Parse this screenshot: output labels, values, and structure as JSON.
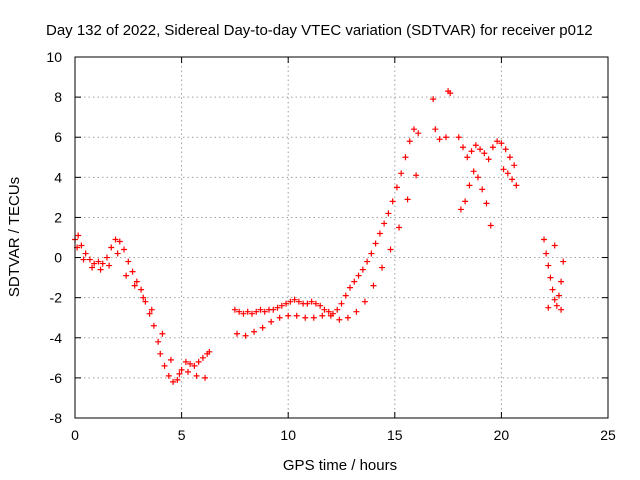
{
  "chart_data": {
    "type": "scatter",
    "title": "Day 132 of 2022, Sidereal Day-to-day VTEC variation (SDTVAR) for receiver p012",
    "xlabel": "GPS time / hours",
    "ylabel": "SDTVAR / TECUs",
    "xlim": [
      0,
      25
    ],
    "ylim": [
      -8,
      10
    ],
    "x_ticks": [
      0,
      5,
      10,
      15,
      20,
      25
    ],
    "y_ticks": [
      -8,
      -6,
      -4,
      -2,
      0,
      2,
      4,
      6,
      8,
      10
    ],
    "x_tick_labels": [
      "0",
      "5",
      "10",
      "15",
      "20",
      "25"
    ],
    "y_tick_labels": [
      "-8",
      "-6",
      "-4",
      "-2",
      "0",
      "2",
      "4",
      "6",
      "8",
      "10"
    ],
    "grid": true,
    "marker": "+",
    "color": "#ff0000",
    "series": [
      {
        "name": "SDTVAR",
        "x": [
          0.0,
          0.15,
          0.3,
          0.5,
          0.7,
          0.9,
          1.1,
          1.3,
          1.5,
          1.7,
          1.9,
          2.1,
          2.3,
          2.5,
          2.7,
          2.9,
          3.1,
          3.3,
          3.5,
          3.7,
          3.9,
          4.0,
          4.2,
          4.4,
          4.6,
          4.8,
          5.0,
          5.2,
          5.4,
          5.6,
          5.8,
          6.0,
          6.2,
          6.3,
          0.1,
          0.4,
          0.8,
          1.2,
          1.6,
          2.0,
          2.4,
          2.8,
          3.2,
          3.6,
          4.1,
          4.5,
          4.9,
          5.3,
          5.7,
          6.1,
          7.5,
          7.7,
          7.9,
          8.1,
          8.3,
          8.5,
          8.7,
          8.9,
          9.1,
          9.3,
          9.5,
          9.7,
          9.9,
          10.1,
          10.3,
          10.5,
          10.7,
          10.9,
          11.1,
          11.3,
          11.5,
          11.7,
          11.9,
          12.1,
          12.3,
          12.5,
          12.7,
          12.9,
          13.1,
          13.3,
          13.5,
          13.7,
          13.9,
          14.1,
          14.3,
          14.5,
          14.7,
          14.9,
          15.1,
          15.3,
          15.5,
          15.7,
          15.9,
          16.1,
          7.6,
          8.0,
          8.4,
          8.8,
          9.2,
          9.6,
          10.0,
          10.4,
          10.8,
          11.2,
          11.6,
          12.0,
          12.4,
          12.8,
          13.2,
          13.6,
          14.0,
          14.4,
          14.8,
          15.2,
          15.6,
          16.0,
          16.8,
          16.9,
          17.1,
          17.5,
          17.6,
          17.4,
          18.0,
          18.2,
          18.4,
          18.6,
          18.8,
          19.0,
          19.2,
          19.4,
          19.6,
          19.8,
          20.0,
          20.2,
          20.4,
          20.6,
          18.1,
          18.3,
          18.5,
          18.7,
          18.9,
          19.1,
          19.3,
          19.5,
          20.1,
          20.3,
          20.5,
          20.7,
          22.0,
          22.1,
          22.2,
          22.3,
          22.4,
          22.5,
          22.6,
          22.7,
          22.8,
          22.9,
          22.2,
          22.5,
          22.8
        ],
        "y": [
          0.9,
          1.1,
          0.6,
          0.2,
          -0.1,
          -0.3,
          -0.2,
          -0.3,
          0.0,
          0.5,
          0.9,
          0.8,
          0.4,
          -0.2,
          -0.7,
          -1.2,
          -1.6,
          -2.2,
          -2.8,
          -3.4,
          -4.2,
          -4.8,
          -5.4,
          -5.9,
          -6.2,
          -6.1,
          -5.6,
          -5.2,
          -5.3,
          -5.4,
          -5.2,
          -5.0,
          -4.8,
          -4.7,
          0.5,
          -0.1,
          -0.5,
          -0.6,
          -0.4,
          0.2,
          -0.9,
          -1.4,
          -2.0,
          -2.6,
          -3.8,
          -5.1,
          -5.8,
          -5.7,
          -5.9,
          -6.0,
          -2.6,
          -2.7,
          -2.8,
          -2.7,
          -2.8,
          -2.7,
          -2.6,
          -2.7,
          -2.6,
          -2.6,
          -2.5,
          -2.4,
          -2.3,
          -2.2,
          -2.1,
          -2.2,
          -2.3,
          -2.3,
          -2.2,
          -2.3,
          -2.4,
          -2.6,
          -2.7,
          -2.8,
          -2.6,
          -2.3,
          -1.9,
          -1.5,
          -1.2,
          -0.9,
          -0.6,
          -0.2,
          0.2,
          0.7,
          1.2,
          1.7,
          2.2,
          2.8,
          3.5,
          4.2,
          5.0,
          5.8,
          6.4,
          6.2,
          -3.8,
          -3.9,
          -3.7,
          -3.5,
          -3.2,
          -3.0,
          -2.9,
          -2.9,
          -3.0,
          -3.0,
          -2.9,
          -2.9,
          -3.1,
          -3.0,
          -2.7,
          -2.2,
          -1.4,
          -0.5,
          0.4,
          1.5,
          2.9,
          4.1,
          7.9,
          6.4,
          5.9,
          8.3,
          8.2,
          6.0,
          6.0,
          5.5,
          5.0,
          5.3,
          5.6,
          5.4,
          5.2,
          4.9,
          5.5,
          5.8,
          5.7,
          5.4,
          5.0,
          4.6,
          2.4,
          2.8,
          3.6,
          4.3,
          4.0,
          3.4,
          2.7,
          1.6,
          4.4,
          4.2,
          3.9,
          3.6,
          0.9,
          0.2,
          -0.4,
          -1.0,
          -1.6,
          -2.1,
          -2.4,
          -1.9,
          -1.2,
          -0.2,
          -2.5,
          0.6,
          -2.6
        ]
      }
    ]
  }
}
